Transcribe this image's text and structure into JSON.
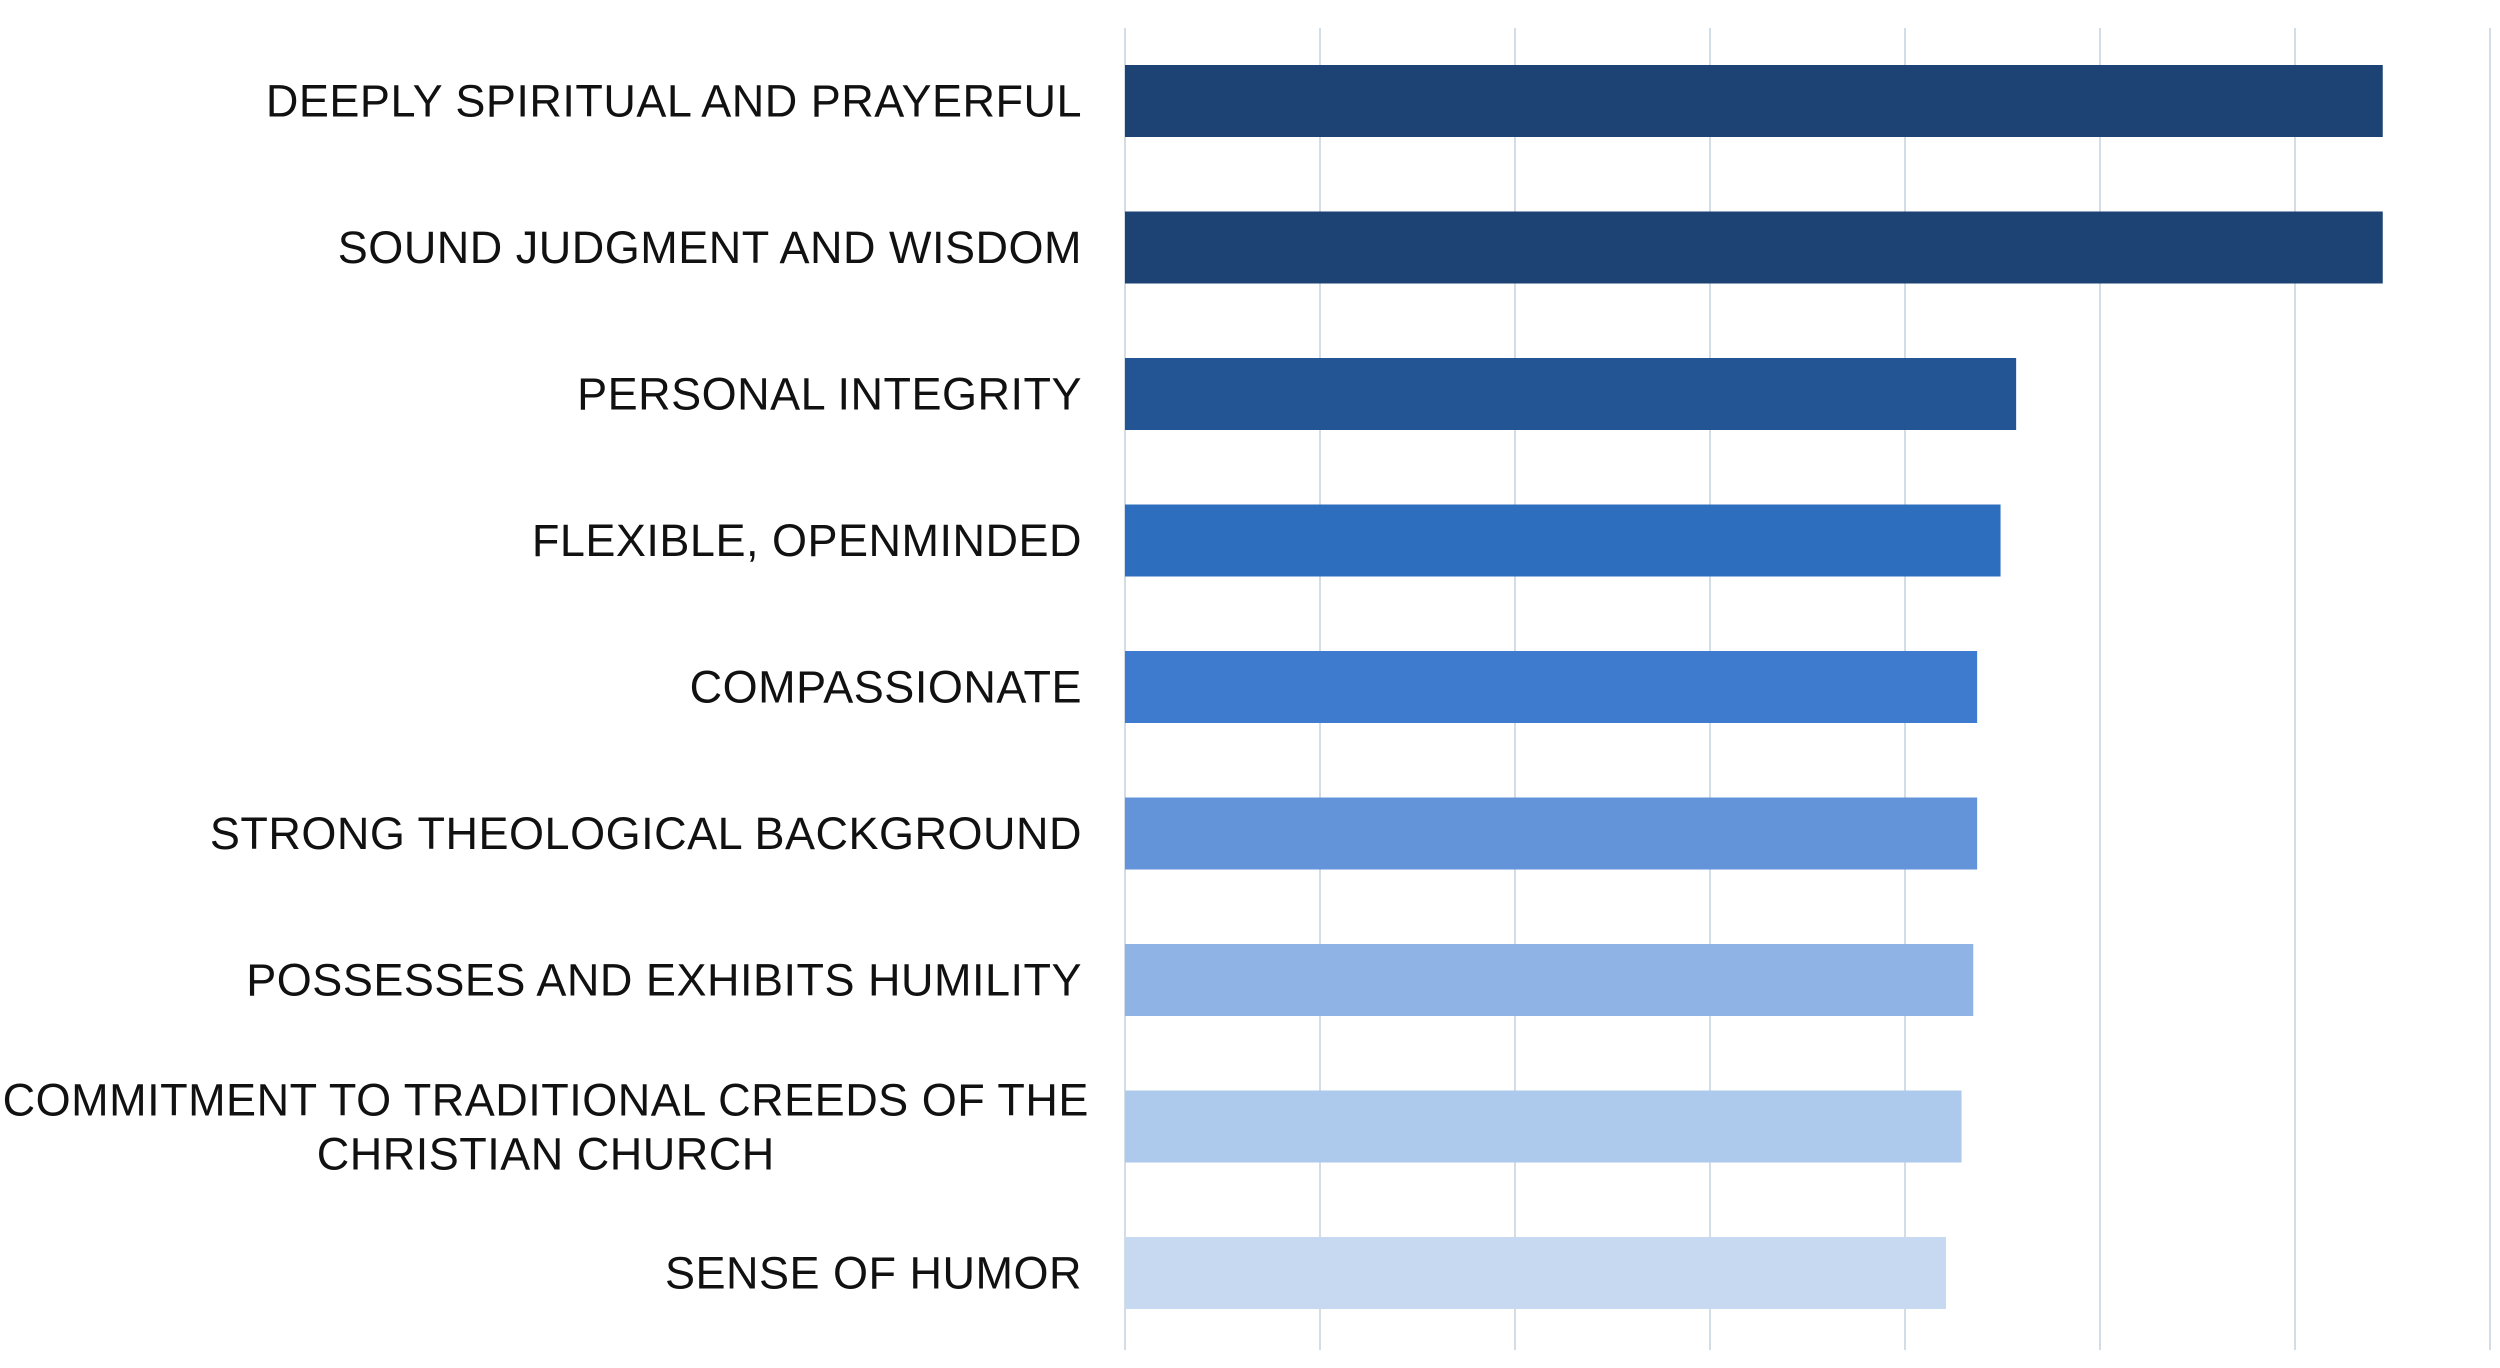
{
  "chart_data": {
    "type": "bar",
    "orientation": "horizontal",
    "title": "",
    "xlabel": "",
    "ylabel": "",
    "categories": [
      "DEEPLY SPIRITUAL AND PRAYERFUL",
      "SOUND JUDGMENT AND WISDOM",
      "PERSONAL INTEGRITY",
      "FLEXIBLE, OPENMINDED",
      "COMPASSIONATE",
      "STRONG THEOLOGICAL BACKGROUND",
      "POSSESSES AND EXHIBITS HUMILITY",
      "COMMITMENT TO TRADITIONAL CREEDS OF THE CHRISTIAN CHURCH",
      "SENSE OF HUMOR"
    ],
    "category_lines": [
      [
        "DEEPLY SPIRITUAL AND PRAYERFUL"
      ],
      [
        "SOUND JUDGMENT AND WISDOM"
      ],
      [
        "PERSONAL INTEGRITY"
      ],
      [
        "FLEXIBLE, OPENMINDED"
      ],
      [
        "COMPASSIONATE"
      ],
      [
        "STRONG THEOLOGICAL BACKGROUND"
      ],
      [
        "POSSESSES AND EXHIBITS HUMILITY"
      ],
      [
        "COMMITMENT TO TRADITIONAL CREEDS OF THE",
        "CHRISTIAN CHURCH"
      ],
      [
        "SENSE OF HUMOR"
      ]
    ],
    "values": [
      6.45,
      6.45,
      4.57,
      4.49,
      4.37,
      4.37,
      4.35,
      4.29,
      4.21
    ],
    "bar_colors": [
      "#1d4274",
      "#1d4274",
      "#235594",
      "#2e6ebe",
      "#3e7bcf",
      "#6393d8",
      "#8fb3e5",
      "#adc9eb",
      "#c6d9f1"
    ],
    "xlim": [
      0,
      7
    ],
    "gridlines": true,
    "tick_labels_shown": false
  }
}
